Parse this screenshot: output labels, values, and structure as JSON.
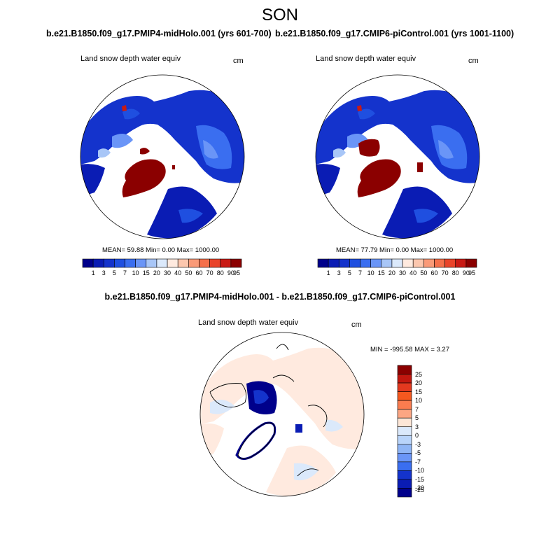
{
  "season": "SON",
  "panels": [
    {
      "case_title": "b.e21.B1850.f09_g17.PMIP4-midHolo.001 (yrs 601-700)",
      "variable": "Land snow depth water equiv",
      "units": "cm",
      "stats": "MEAN=  59.88  Min=   0.00  Max= 1000.00"
    },
    {
      "case_title": "b.e21.B1850.f09_g17.CMIP6-piControl.001 (yrs 1001-1100)",
      "variable": "Land snow depth water equiv",
      "units": "cm",
      "stats": "MEAN=  77.79  Min=   0.00  Max= 1000.00"
    }
  ],
  "difference_panel": {
    "title": "b.e21.B1850.f09_g17.PMIP4-midHolo.001 - b.e21.B1850.f09_g17.CMIP6-piControl.001",
    "variable": "Land snow depth water equiv",
    "units": "cm",
    "stats": "MIN = -995.58 MAX =   3.27"
  },
  "colors": {
    "main_levels": [
      "#00008b",
      "#0a1cb4",
      "#1433cc",
      "#1f4fe0",
      "#3a6ef0",
      "#6a95f7",
      "#a8c6f7",
      "#dbe9fb",
      "#ffeadf",
      "#fcc7ae",
      "#fa9a78",
      "#f5704b",
      "#e9442a",
      "#c91a14",
      "#8b0000"
    ],
    "diff_levels": [
      "#8b0000",
      "#c2170f",
      "#e3391f",
      "#f5581f",
      "#fa7c4f",
      "#fca683",
      "#fde6d6",
      "#dbe9fb",
      "#b9d4fa",
      "#8fb5f5",
      "#6a95f7",
      "#3a6ef0",
      "#1433cc",
      "#0a1cb4",
      "#00008b"
    ],
    "land_no_data": "#ffffff"
  },
  "chart_data": [
    {
      "type": "heatmap",
      "title": "b.e21.B1850.f09_g17.PMIP4-midHolo.001 (yrs 601-700)",
      "subtitle": "Land snow depth water equiv",
      "units": "cm",
      "projection": "north polar stereographic",
      "levels": [
        "1",
        "3",
        "5",
        "7",
        "10",
        "15",
        "20",
        "30",
        "40",
        "50",
        "60",
        "70",
        "80",
        "90",
        "95"
      ],
      "mean": 59.88,
      "min": 0.0,
      "max": 1000.0
    },
    {
      "type": "heatmap",
      "title": "b.e21.B1850.f09_g17.CMIP6-piControl.001 (yrs 1001-1100)",
      "subtitle": "Land snow depth water equiv",
      "units": "cm",
      "projection": "north polar stereographic",
      "levels": [
        "1",
        "3",
        "5",
        "7",
        "10",
        "15",
        "20",
        "30",
        "40",
        "50",
        "60",
        "70",
        "80",
        "90",
        "95"
      ],
      "mean": 77.79,
      "min": 0.0,
      "max": 1000.0
    },
    {
      "type": "heatmap",
      "title": "b.e21.B1850.f09_g17.PMIP4-midHolo.001 - b.e21.B1850.f09_g17.CMIP6-piControl.001",
      "subtitle": "Land snow depth water equiv",
      "units": "cm",
      "projection": "north polar stereographic",
      "levels": [
        "25",
        "20",
        "15",
        "10",
        "7",
        "5",
        "3",
        "0",
        "-3",
        "-5",
        "-7",
        "-10",
        "-15",
        "-20",
        "-25"
      ],
      "min": -995.58,
      "max": 3.27
    }
  ]
}
